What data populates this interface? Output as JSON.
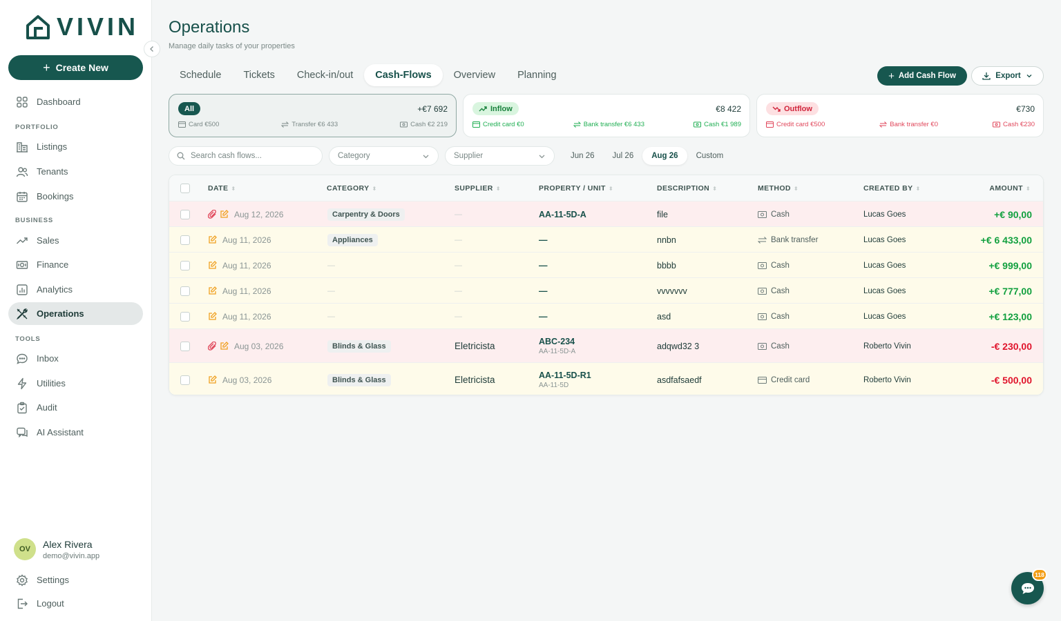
{
  "app": {
    "brand": "VIVIN",
    "create_label": "Create New"
  },
  "sidebar": {
    "main": [
      {
        "label": "Dashboard",
        "icon": "dashboard-icon"
      }
    ],
    "sections": [
      {
        "title": "PORTFOLIO",
        "items": [
          {
            "label": "Listings",
            "icon": "listings-icon"
          },
          {
            "label": "Tenants",
            "icon": "tenants-icon"
          },
          {
            "label": "Bookings",
            "icon": "calendar-icon"
          }
        ]
      },
      {
        "title": "BUSINESS",
        "items": [
          {
            "label": "Sales",
            "icon": "trend-icon"
          },
          {
            "label": "Finance",
            "icon": "money-icon"
          },
          {
            "label": "Analytics",
            "icon": "chart-icon"
          },
          {
            "label": "Operations",
            "icon": "tools-icon",
            "active": true
          }
        ]
      },
      {
        "title": "TOOLS",
        "items": [
          {
            "label": "Inbox",
            "icon": "chat-icon"
          },
          {
            "label": "Utilities",
            "icon": "bolt-icon"
          },
          {
            "label": "Audit",
            "icon": "clipboard-icon"
          },
          {
            "label": "AI Assistant",
            "icon": "ai-chat-icon"
          }
        ]
      }
    ],
    "user": {
      "initials": "OV",
      "name": "Alex Rivera",
      "email": "demo@vivin.app"
    },
    "settings_label": "Settings",
    "logout_label": "Logout"
  },
  "header": {
    "title": "Operations",
    "subtitle": "Manage daily tasks of your properties",
    "tabs": [
      "Schedule",
      "Tickets",
      "Check-in/out",
      "Cash-Flows",
      "Overview",
      "Planning"
    ],
    "active_tab": "Cash-Flows",
    "add_label": "Add Cash Flow",
    "export_label": "Export"
  },
  "summary": {
    "all": {
      "label": "All",
      "total": "+€7 692",
      "card": "Card €500",
      "transfer": "Transfer €6 433",
      "cash": "Cash €2 219"
    },
    "inflow": {
      "label": "Inflow",
      "total": "€8 422",
      "card": "Credit card €0",
      "transfer": "Bank transfer €6 433",
      "cash": "Cash €1 989"
    },
    "outflow": {
      "label": "Outflow",
      "total": "€730",
      "card": "Credit card €500",
      "transfer": "Bank transfer €0",
      "cash": "Cash €230"
    }
  },
  "filters": {
    "search_placeholder": "Search cash flows...",
    "category_placeholder": "Category",
    "supplier_placeholder": "Supplier",
    "periods": [
      "Jun 26",
      "Jul 26",
      "Aug 26",
      "Custom"
    ],
    "active_period": "Aug 26"
  },
  "table": {
    "columns": [
      "DATE",
      "CATEGORY",
      "SUPPLIER",
      "PROPERTY / UNIT",
      "DESCRIPTION",
      "METHOD",
      "CREATED BY",
      "AMOUNT"
    ],
    "rows": [
      {
        "tone": "pink",
        "attach": true,
        "date": "Aug 12, 2026",
        "category": "Carpentry & Doors",
        "supplier": "—",
        "property": "AA-11-5D-A",
        "unit": "",
        "description": "file",
        "method": "Cash",
        "created_by": "Lucas Goes",
        "amount": "+€ 90,00",
        "positive": true
      },
      {
        "tone": "cream",
        "attach": false,
        "date": "Aug 11, 2026",
        "category": "Appliances",
        "supplier": "—",
        "property": "—",
        "unit": "",
        "description": "nnbn",
        "method": "Bank transfer",
        "created_by": "Lucas Goes",
        "amount": "+€ 6 433,00",
        "positive": true
      },
      {
        "tone": "cream",
        "attach": false,
        "date": "Aug 11, 2026",
        "category": "—",
        "supplier": "—",
        "property": "—",
        "unit": "",
        "description": "bbbb",
        "method": "Cash",
        "created_by": "Lucas Goes",
        "amount": "+€ 999,00",
        "positive": true
      },
      {
        "tone": "cream",
        "attach": false,
        "date": "Aug 11, 2026",
        "category": "—",
        "supplier": "—",
        "property": "—",
        "unit": "",
        "description": "vvvvvvv",
        "method": "Cash",
        "created_by": "Lucas Goes",
        "amount": "+€ 777,00",
        "positive": true
      },
      {
        "tone": "cream",
        "attach": false,
        "date": "Aug 11, 2026",
        "category": "—",
        "supplier": "—",
        "property": "—",
        "unit": "",
        "description": "asd",
        "method": "Cash",
        "created_by": "Lucas Goes",
        "amount": "+€ 123,00",
        "positive": true
      },
      {
        "tone": "pink",
        "attach": true,
        "date": "Aug 03, 2026",
        "category": "Blinds & Glass",
        "supplier": "Eletricista",
        "property": "ABC-234",
        "unit": "AA-11-5D-A",
        "description": "adqwd32 3",
        "method": "Cash",
        "created_by": "Roberto Vivin",
        "amount": "-€ 230,00",
        "positive": false
      },
      {
        "tone": "cream",
        "attach": false,
        "date": "Aug 03, 2026",
        "category": "Blinds & Glass",
        "supplier": "Eletricista",
        "property": "AA-11-5D-R1",
        "unit": "AA-11-5D",
        "description": "asdfafsaedf",
        "method": "Credit card",
        "created_by": "Roberto Vivin",
        "amount": "-€ 500,00",
        "positive": false
      }
    ]
  },
  "chat": {
    "badge": "118"
  },
  "colors": {
    "brand": "#17574f",
    "positive": "#12a03f",
    "negative": "#e0142c",
    "attach": "#e0465a",
    "edit": "#f0a020"
  }
}
